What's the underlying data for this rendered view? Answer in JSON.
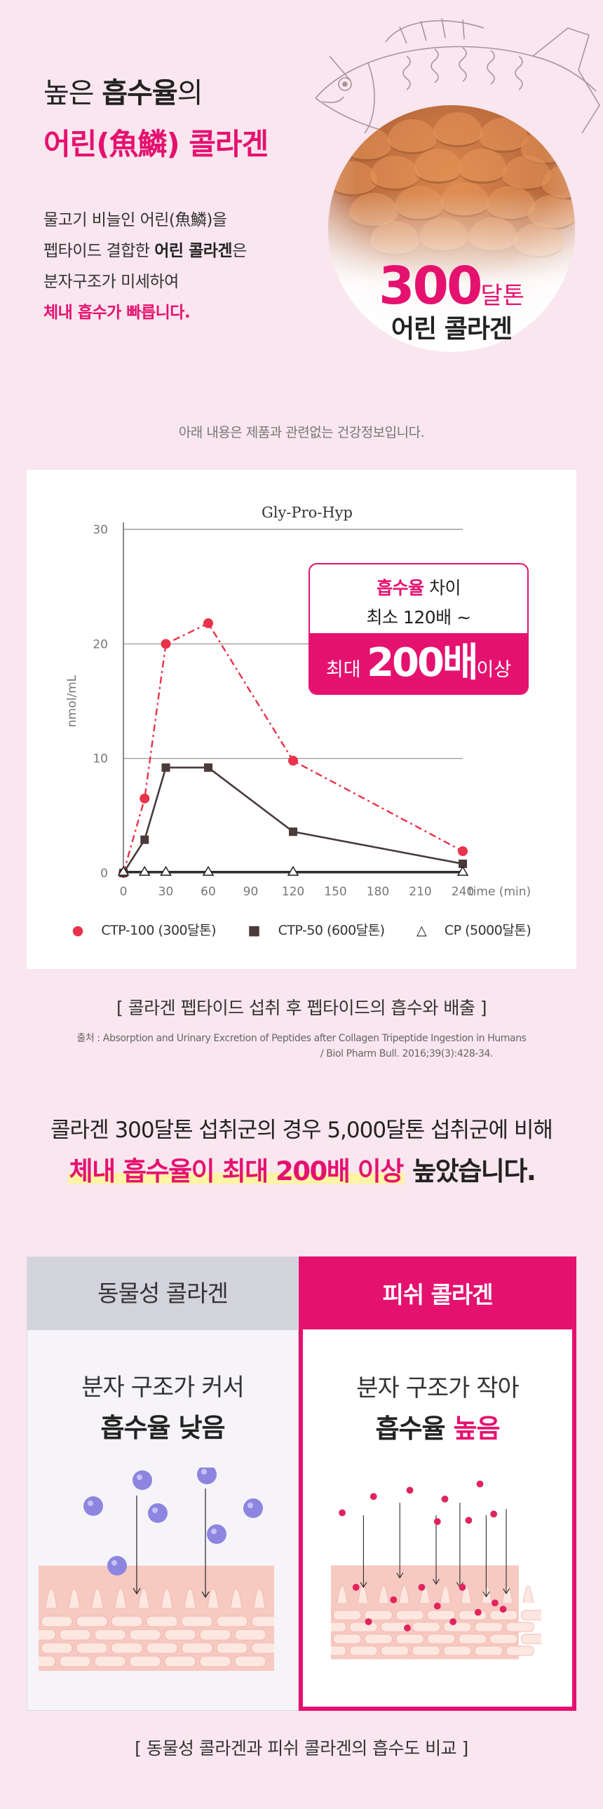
{
  "hero": {
    "line1_pre": "높은 ",
    "line1_bold": "흡수율",
    "line1_post": "의",
    "line2": "어린(魚鱗) 콜라겐",
    "desc_l1": "물고기 비늘인 어린(魚鱗)을",
    "desc_l2_pre": "펩타이드 결합한 ",
    "desc_l2_bold": "어린 콜라겐",
    "desc_l2_post": "은",
    "desc_l3": "분자구조가 미세하여",
    "desc_l4": "체내 흡수가 빠릅니다.",
    "badge_num": "300",
    "badge_unit": "달톤",
    "badge_sub": "어린 콜라겐"
  },
  "notice": "아래 내용은 제품과 관련없는 건강정보입니다.",
  "callout": {
    "l1_bold": "흡수율",
    "l1_rest": " 차이",
    "l2": "최소 120배 ~",
    "l3_pre": "최대 ",
    "l3_big": "200배",
    "l3_post": "이상"
  },
  "chart_data": {
    "type": "line",
    "title": "Gly-Pro-Hyp",
    "xlabel": "time (min)",
    "ylabel": "nmol/mL",
    "xlim": [
      0,
      240
    ],
    "ylim": [
      0,
      30
    ],
    "x_ticks": [
      "0",
      "30",
      "60",
      "90",
      "120",
      "150",
      "180",
      "210",
      "240"
    ],
    "y_ticks": [
      "0",
      "10",
      "20",
      "30"
    ],
    "grid": "horizontal",
    "legend_position": "bottom",
    "series": [
      {
        "name": "CTP-100 (300달톤)",
        "marker": "circle",
        "style": "dash-dot",
        "color": "#e8334a",
        "x": [
          0,
          15,
          30,
          60,
          120,
          240
        ],
        "y": [
          0,
          6.5,
          20,
          21.8,
          9.8,
          1.9
        ]
      },
      {
        "name": "CTP-50 (600달톤)",
        "marker": "square",
        "style": "solid",
        "color": "#4a3a3a",
        "x": [
          0,
          15,
          30,
          60,
          120,
          240
        ],
        "y": [
          0,
          2.9,
          9.2,
          9.2,
          3.6,
          0.8
        ]
      },
      {
        "name": "CP (5000달톤)",
        "marker": "triangle-open",
        "style": "solid",
        "color": "#222222",
        "x": [
          0,
          15,
          30,
          60,
          120,
          240
        ],
        "y": [
          0.1,
          0.1,
          0.1,
          0.1,
          0.1,
          0.1
        ]
      }
    ]
  },
  "legend": [
    "● CTP-100 (300달톤)",
    "■ CTP-50 (600달톤)",
    "△ CP (5000달톤)"
  ],
  "caption": "[ 콜라겐 펩타이드 섭취 후 펩타이드의 흡수와 배출 ]",
  "source_l1": "출처 : Absorption and Urinary Excretion of Peptides after Collagen Tripeptide Ingestion in Humans",
  "source_l2": "/ Biol Pharm Bull. 2016;39(3):428-34.",
  "statement": {
    "line1": "콜라겐 300달톤 섭취군의 경우 5,000달톤 섭취군에 비해",
    "l2_a": "체내 ",
    "l2_b": "흡수율",
    "l2_c": "이 최대 ",
    "l2_d": "200배",
    "l2_e": " 이상",
    "l2_f": " 높았습니다."
  },
  "compare": {
    "left_head": "동물성 콜라겐",
    "left_t1": "분자 구조가 커서",
    "left_t2": "흡수율 낮음",
    "right_head": "피쉬 콜라겐",
    "right_t1": "분자 구조가 작아",
    "right_t2_pre": "흡수율 ",
    "right_t2_pk": "높음"
  },
  "bottom_caption": "[ 동물성 콜라겐과 피쉬 콜라겐의 흡수도 비교 ]",
  "colors": {
    "accent": "#e5116f",
    "background": "#f9e6ef",
    "big_particle": "#8d86e0",
    "small_particle": "#e0245e"
  }
}
